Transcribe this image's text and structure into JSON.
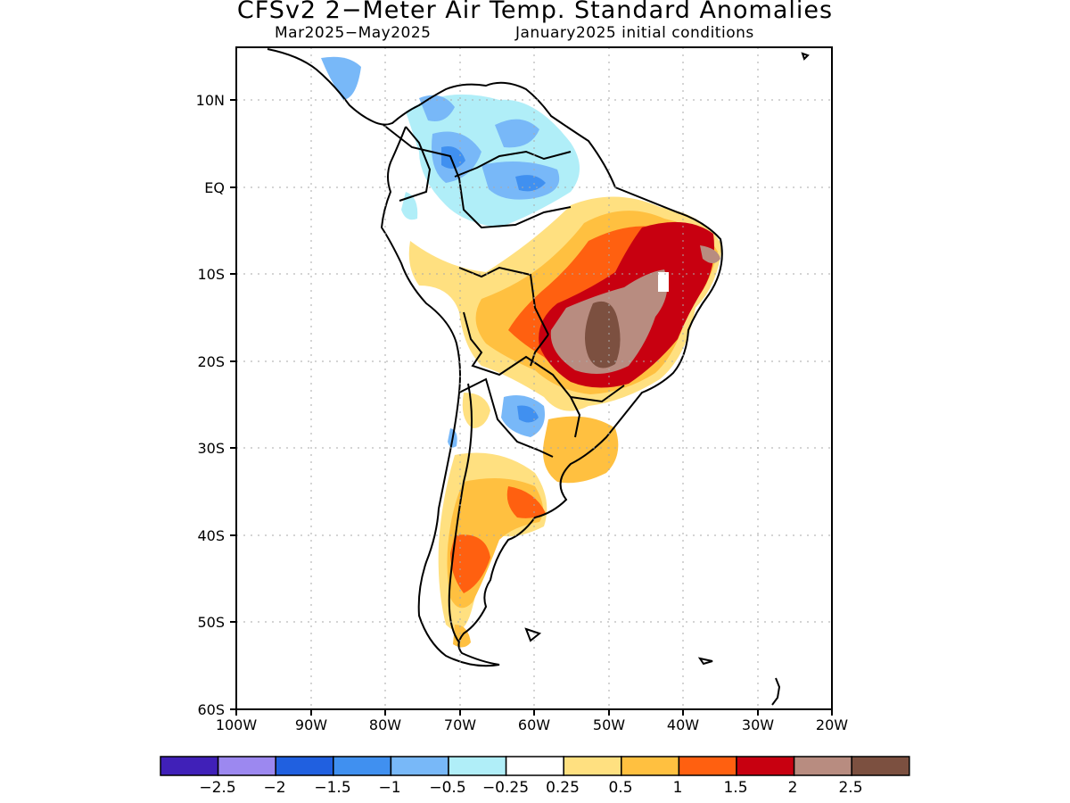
{
  "header": {
    "title": "CFSv2 2-Meter Air Temp. Standard Anomalies",
    "period": "Mar2025-May2025",
    "initial_conditions": "January2025 initial conditions"
  },
  "map": {
    "lat_labels": [
      "10N",
      "EQ",
      "10S",
      "20S",
      "30S",
      "40S",
      "50S",
      "60S"
    ],
    "lon_labels": [
      "100W",
      "90W",
      "80W",
      "70W",
      "60W",
      "50W",
      "40W",
      "30W",
      "20W"
    ]
  },
  "colorbar": {
    "colors": [
      "#4020b8",
      "#9c88f0",
      "#2060e0",
      "#4090f0",
      "#78b8f8",
      "#b0eef8",
      "#ffffff",
      "#ffe080",
      "#ffc040",
      "#ff6010",
      "#c80010",
      "#b88c80",
      "#7c5040"
    ],
    "labels": [
      "-2.5",
      "-2",
      "-1.5",
      "-1",
      "-0.5",
      "-0.25",
      "0.25",
      "0.5",
      "1",
      "1.5",
      "2",
      "2.5"
    ]
  }
}
